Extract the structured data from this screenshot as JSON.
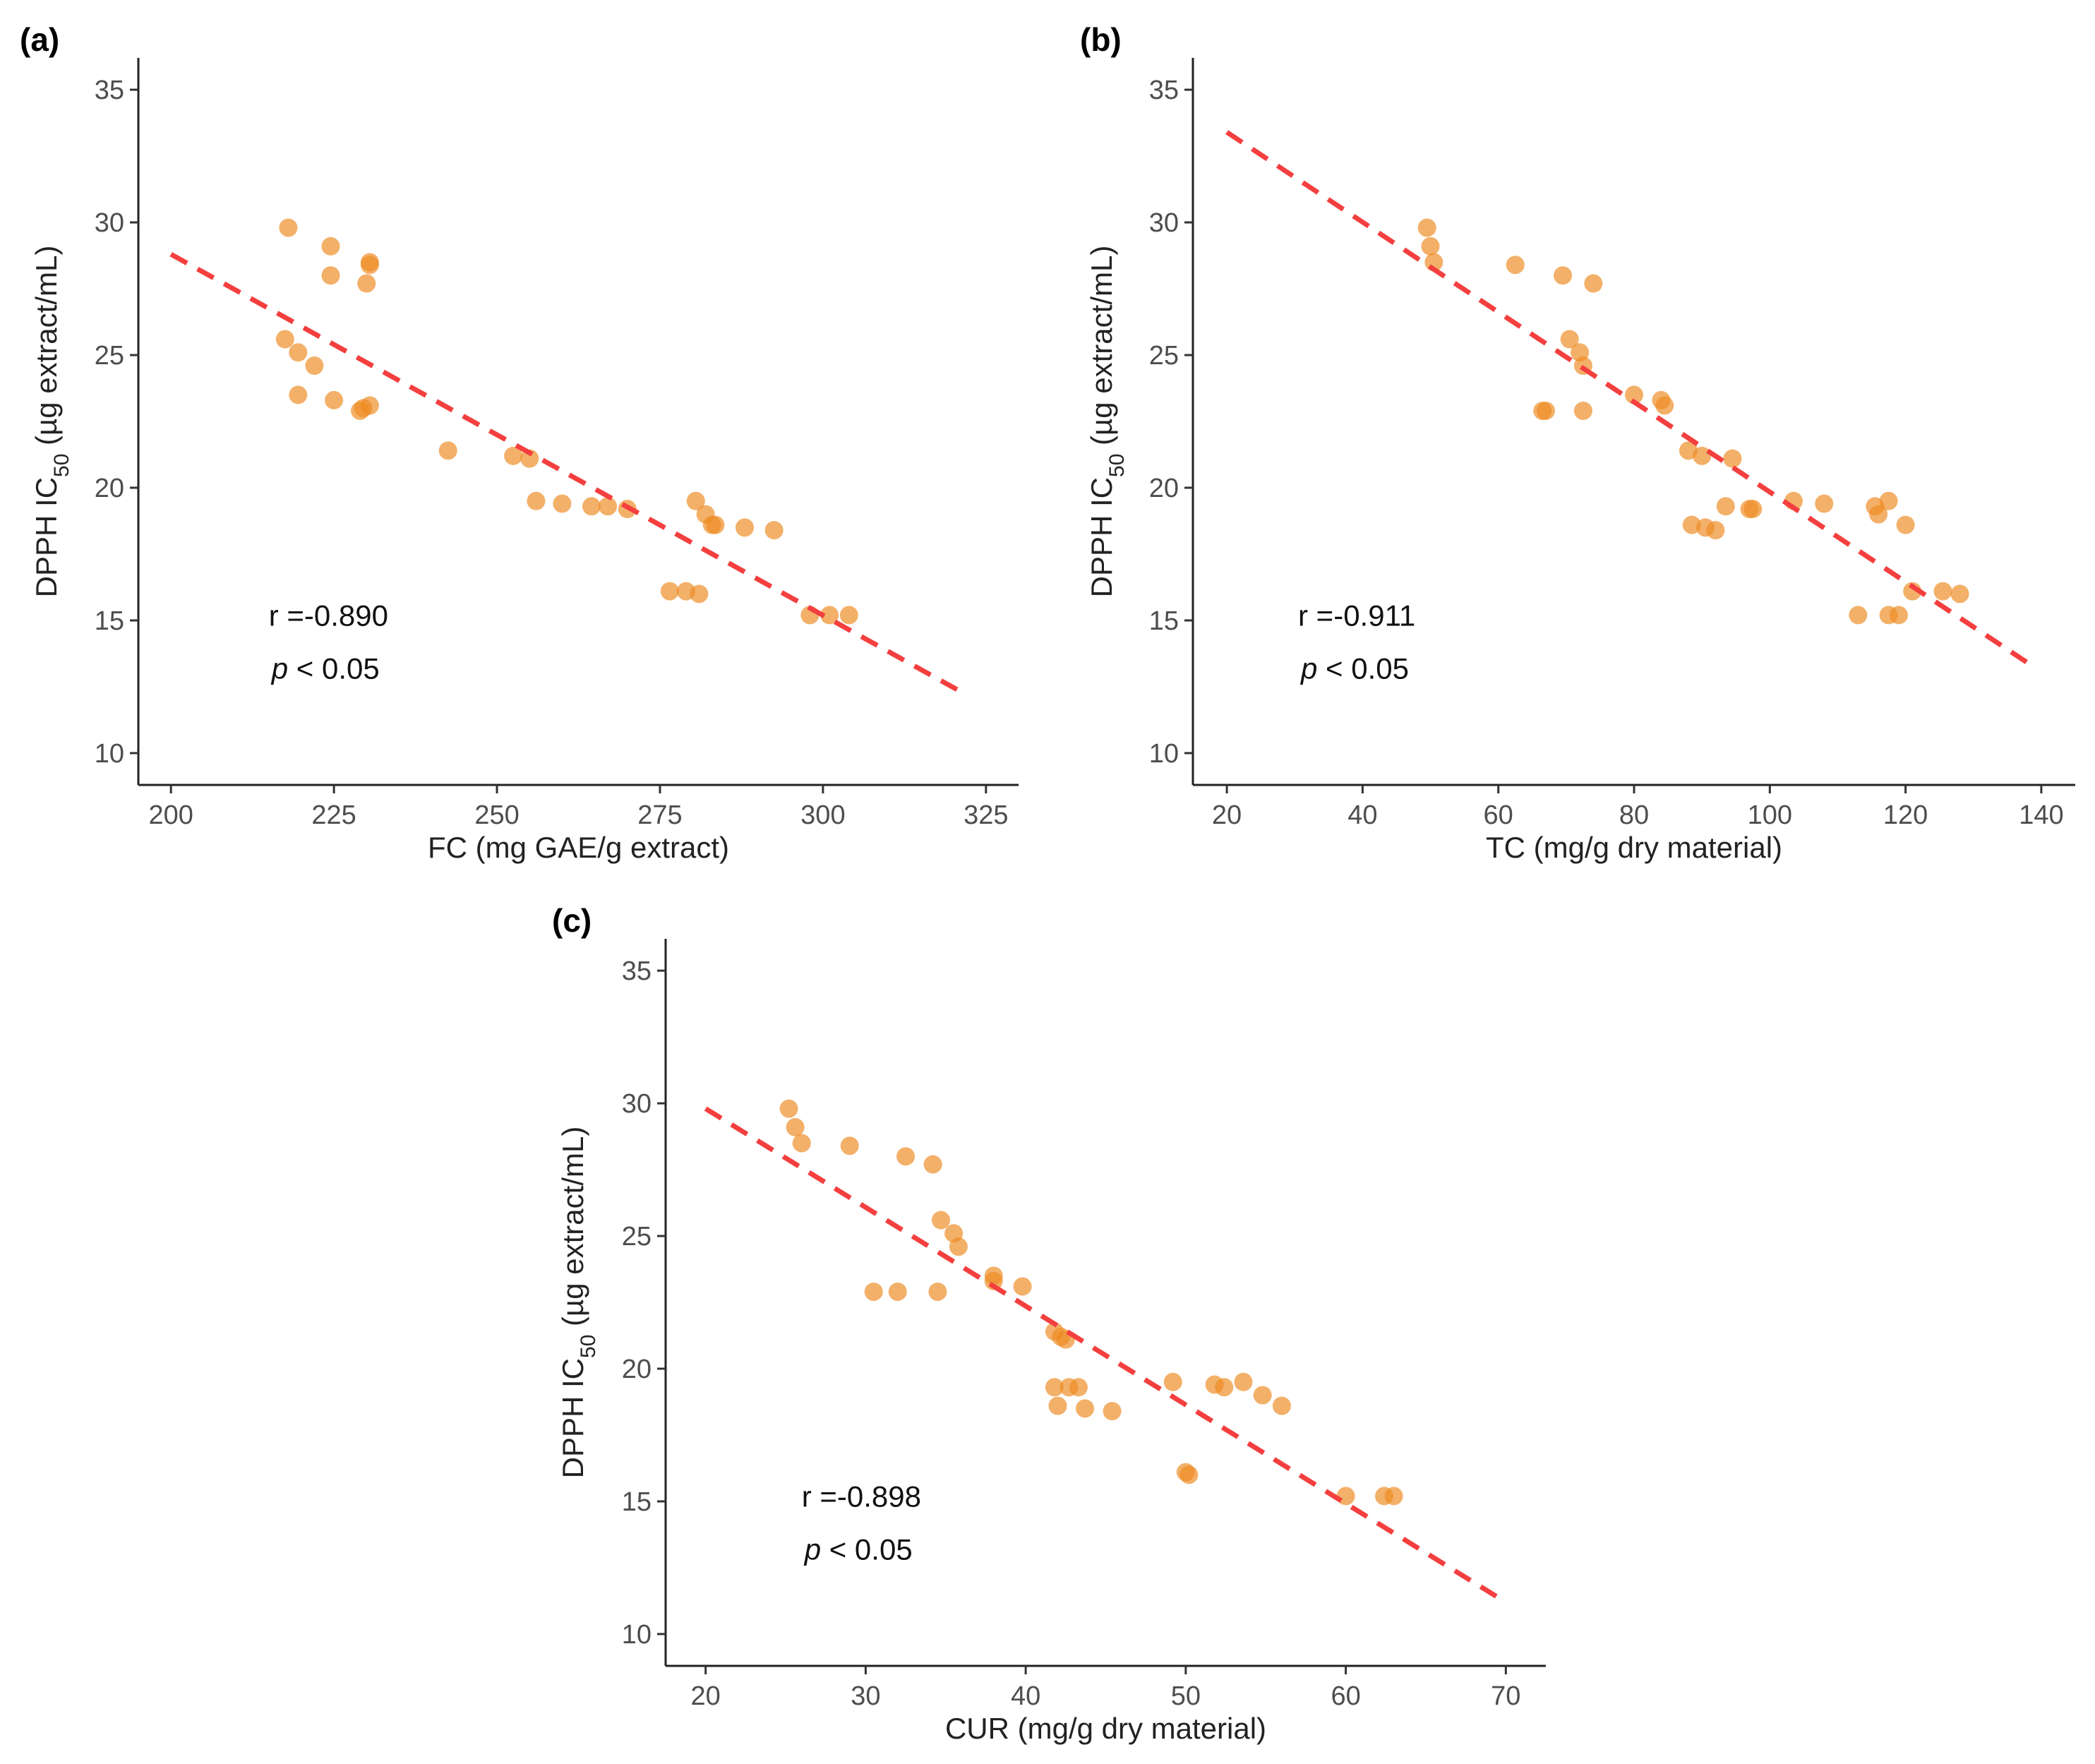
{
  "chart_data": [
    {
      "type": "scatter",
      "panel_label": "(a)",
      "xlabel": "FC (mg GAE/g extract)",
      "ylabel_main": "DPPH  IC",
      "ylabel_sub": "50",
      "ylabel_rest": " (µg extract/mL)",
      "xlim": [
        195,
        330
      ],
      "ylim": [
        8.8,
        36.2
      ],
      "xticks": [
        200,
        225,
        250,
        275,
        300,
        325
      ],
      "yticks": [
        10,
        15,
        20,
        25,
        30,
        35
      ],
      "fit_line": {
        "x": [
          200,
          322
        ],
        "y": [
          28.8,
          12.2
        ]
      },
      "annotation_r": "r =-0.890",
      "annotation_p_italic": "p",
      "annotation_p_rest": " < 0.05",
      "annotation_pos": {
        "x": 215,
        "y_r": 14.8,
        "y_p": 12.8
      },
      "points": {
        "x": [
          218,
          224.5,
          224.5,
          230,
          230.5,
          230.5,
          217.5,
          219.5,
          222,
          219.5,
          225,
          230.5,
          229.5,
          229,
          242.5,
          252.5,
          255,
          256,
          260,
          264.5,
          267,
          270,
          280.5,
          282,
          283,
          283.5,
          288,
          292.5,
          276.5,
          279,
          281,
          298,
          301,
          304
        ],
        "y": [
          29.8,
          29.1,
          28.0,
          27.7,
          28.4,
          28.5,
          25.6,
          25.1,
          24.6,
          23.5,
          23.3,
          23.1,
          23.0,
          22.9,
          21.4,
          21.2,
          21.1,
          19.5,
          19.4,
          19.3,
          19.3,
          19.2,
          19.5,
          19.0,
          18.6,
          18.6,
          18.5,
          18.4,
          16.1,
          16.1,
          16.0,
          15.2,
          15.2,
          15.2
        ]
      }
    },
    {
      "type": "scatter",
      "panel_label": "(b)",
      "xlabel": "TC (mg/g dry material)",
      "ylabel_main": "DPPH  IC",
      "ylabel_sub": "50",
      "ylabel_rest": " (µg extract/mL)",
      "xlim": [
        15,
        145
      ],
      "ylim": [
        8.8,
        36.2
      ],
      "xticks": [
        20,
        40,
        60,
        80,
        100,
        120,
        140
      ],
      "yticks": [
        10,
        15,
        20,
        25,
        30,
        35
      ],
      "fit_line": {
        "x": [
          20,
          138
        ],
        "y": [
          33.4,
          13.4
        ]
      },
      "annotation_r": "r =-0.911",
      "annotation_p_italic": "p",
      "annotation_p_rest": " < 0.05",
      "annotation_pos": {
        "x": 30.5,
        "y_r": 14.8,
        "y_p": 12.8
      },
      "points": {
        "x": [
          49.5,
          50,
          50.5,
          62.5,
          69.5,
          74,
          70.5,
          72,
          72.5,
          67,
          66.5,
          72.5,
          80,
          84,
          84.5,
          88,
          90,
          94.5,
          88.5,
          90.5,
          92,
          93.5,
          97,
          97.5,
          103.5,
          108,
          115.5,
          116,
          117.5,
          120,
          121,
          125.5,
          128,
          113,
          117.5,
          119
        ],
        "y": [
          29.8,
          29.1,
          28.5,
          28.4,
          28.0,
          27.7,
          25.6,
          25.1,
          24.6,
          22.9,
          22.9,
          22.9,
          23.5,
          23.3,
          23.1,
          21.4,
          21.2,
          21.1,
          18.6,
          18.5,
          18.4,
          19.3,
          19.2,
          19.2,
          19.5,
          19.4,
          19.3,
          19.0,
          19.5,
          18.6,
          16.1,
          16.1,
          16.0,
          15.2,
          15.2,
          15.2
        ]
      }
    },
    {
      "type": "scatter",
      "panel_label": "(c)",
      "xlabel": "CUR (mg/g dry material)",
      "ylabel_main": "DPPH  IC",
      "ylabel_sub": "50",
      "ylabel_rest": " (µg extract/mL)",
      "xlim": [
        17.5,
        72.5
      ],
      "ylim": [
        8.8,
        36.2
      ],
      "xticks": [
        20,
        30,
        40,
        50,
        60,
        70
      ],
      "yticks": [
        10,
        15,
        20,
        25,
        30,
        35
      ],
      "fit_line": {
        "x": [
          20,
          70
        ],
        "y": [
          29.8,
          11.2
        ]
      },
      "annotation_r": "r =-0.898",
      "annotation_p_italic": "p",
      "annotation_p_rest": " < 0.05",
      "annotation_pos": {
        "x": 26,
        "y_r": 14.8,
        "y_p": 12.8
      },
      "points": {
        "x": [
          25.2,
          25.6,
          26,
          29,
          32.5,
          34.2,
          34.7,
          35.5,
          35.8,
          38,
          38,
          39.8,
          30.5,
          32,
          34.5,
          41.8,
          42.2,
          42.5,
          41.8,
          42.7,
          43.3,
          42,
          43.7,
          45.4,
          49.2,
          51.8,
          52.4,
          53.6,
          54.8,
          56,
          50,
          50.2,
          60,
          62.4,
          63
        ],
        "y": [
          29.8,
          29.1,
          28.5,
          28.4,
          28.0,
          27.7,
          25.6,
          25.1,
          24.6,
          23.5,
          23.3,
          23.1,
          22.9,
          22.9,
          22.9,
          21.4,
          21.2,
          21.1,
          19.3,
          19.3,
          19.3,
          18.6,
          18.5,
          18.4,
          19.5,
          19.4,
          19.3,
          19.5,
          19.0,
          18.6,
          16.1,
          16.0,
          15.2,
          15.2,
          15.2
        ]
      }
    }
  ]
}
